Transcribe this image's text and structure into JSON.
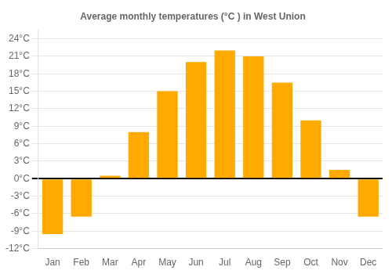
{
  "chart_data": {
    "type": "bar",
    "title": "Average monthly temperatures (°C ) in West Union",
    "categories": [
      "Jan",
      "Feb",
      "Mar",
      "Apr",
      "May",
      "Jun",
      "Jul",
      "Aug",
      "Sep",
      "Oct",
      "Nov",
      "Dec"
    ],
    "values": [
      -9.5,
      -6.5,
      0.5,
      8.0,
      15.0,
      20.0,
      22.0,
      21.0,
      16.5,
      10.0,
      1.5,
      -6.5
    ],
    "color": "#FFAA00",
    "ylim": [
      -12,
      25.5
    ],
    "yticks": [
      {
        "value": -12,
        "label": "-12°C"
      },
      {
        "value": -9,
        "label": "-9°C"
      },
      {
        "value": -6,
        "label": "-6°C"
      },
      {
        "value": -3,
        "label": "-3°C"
      },
      {
        "value": 0,
        "label": "0°C"
      },
      {
        "value": 3,
        "label": "3°C"
      },
      {
        "value": 6,
        "label": "6°C"
      },
      {
        "value": 9,
        "label": "9°C"
      },
      {
        "value": 12,
        "label": "12°C"
      },
      {
        "value": 15,
        "label": "15°C"
      },
      {
        "value": 18,
        "label": "18°C"
      },
      {
        "value": 21,
        "label": "21°C"
      },
      {
        "value": 24,
        "label": "24°C"
      }
    ],
    "grid": true
  }
}
